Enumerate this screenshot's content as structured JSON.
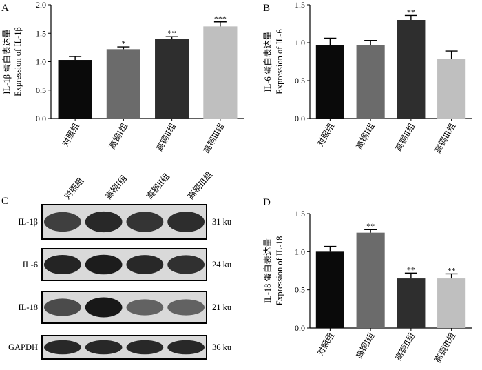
{
  "panels": {
    "A": {
      "letter": "A"
    },
    "B": {
      "letter": "B"
    },
    "C": {
      "letter": "C"
    },
    "D": {
      "letter": "D"
    }
  },
  "chart_data": [
    {
      "id": "A",
      "type": "bar",
      "categories": [
        "对照组",
        "高铜Ⅰ组",
        "高铜Ⅱ组",
        "高铜Ⅲ组"
      ],
      "values": [
        1.03,
        1.22,
        1.4,
        1.62
      ],
      "errors": [
        0.06,
        0.04,
        0.04,
        0.08
      ],
      "significance": [
        "",
        "*",
        "**",
        "***"
      ],
      "ylabel_cn": "IL-1β 蛋白表达量",
      "ylabel_en": "Expression of IL-1β",
      "ylim": [
        0,
        2.0
      ],
      "yticks": [
        "0.0",
        "0.5",
        "1.0",
        "1.5",
        "2.0"
      ],
      "ytick_values": [
        0,
        0.5,
        1.0,
        1.5,
        2.0
      ],
      "colors": [
        "#0a0a0a",
        "#6b6b6b",
        "#2e2e2e",
        "#bfbfbf"
      ]
    },
    {
      "id": "B",
      "type": "bar",
      "categories": [
        "对照组",
        "高铜Ⅰ组",
        "高铜Ⅱ组",
        "高铜Ⅲ组"
      ],
      "values": [
        0.97,
        0.97,
        1.3,
        0.79
      ],
      "errors": [
        0.09,
        0.06,
        0.06,
        0.1
      ],
      "significance": [
        "",
        "",
        "**",
        ""
      ],
      "ylabel_cn": "IL-6 蛋白表达量",
      "ylabel_en": "Expression of IL-6",
      "ylim": [
        0,
        1.5
      ],
      "yticks": [
        "0.0",
        "0.5",
        "1.0",
        "1.5"
      ],
      "ytick_values": [
        0,
        0.5,
        1.0,
        1.5
      ],
      "colors": [
        "#0a0a0a",
        "#6b6b6b",
        "#2e2e2e",
        "#bfbfbf"
      ]
    },
    {
      "id": "D",
      "type": "bar",
      "categories": [
        "对照组",
        "高铜Ⅰ组",
        "高铜Ⅱ组",
        "高铜Ⅲ组"
      ],
      "values": [
        1.0,
        1.25,
        0.65,
        0.65
      ],
      "errors": [
        0.07,
        0.04,
        0.07,
        0.06
      ],
      "significance": [
        "",
        "**",
        "**",
        "**"
      ],
      "ylabel_cn": "IL-18 蛋白表达量",
      "ylabel_en": "Expression of IL-18",
      "ylim": [
        0,
        1.5
      ],
      "yticks": [
        "0.0",
        "0.5",
        "1.0",
        "1.5"
      ],
      "ytick_values": [
        0,
        0.5,
        1.0,
        1.5
      ],
      "colors": [
        "#0a0a0a",
        "#6b6b6b",
        "#2e2e2e",
        "#bfbfbf"
      ]
    }
  ],
  "blot": {
    "lanes": [
      "对照组",
      "高铜Ⅰ组",
      "高铜Ⅱ组",
      "高铜Ⅲ组"
    ],
    "rows": [
      {
        "protein": "IL-1β",
        "size": "31 ku",
        "intensity": [
          0.7,
          0.85,
          0.78,
          0.82
        ]
      },
      {
        "protein": "IL-6",
        "size": "24 ku",
        "intensity": [
          0.88,
          0.92,
          0.85,
          0.8
        ]
      },
      {
        "protein": "IL-18",
        "size": "21 ku",
        "intensity": [
          0.62,
          0.95,
          0.45,
          0.45
        ]
      },
      {
        "protein": "GAPDH",
        "size": "36 ku",
        "intensity": [
          0.85,
          0.85,
          0.85,
          0.85
        ]
      }
    ]
  }
}
